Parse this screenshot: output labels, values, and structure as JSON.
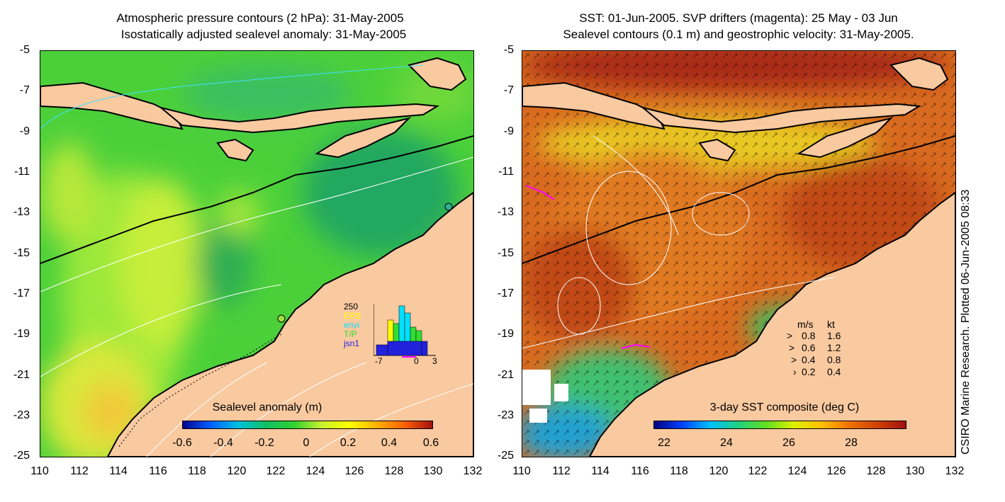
{
  "left_panel": {
    "title_line1": "Atmospheric pressure contours (2 hPa): 31-May-2005",
    "title_line2": "Isostatically adjusted sealevel anomaly: 31-May-2005",
    "colorbar": {
      "title": "Sealevel anomaly (m)",
      "ticks": [
        "-0.6",
        "-0.4",
        "-0.2",
        "0",
        "0.2",
        "0.4",
        "0.6"
      ]
    },
    "inset": {
      "ymax_label": "250",
      "series_labels": [
        {
          "text": "ERS",
          "color": "#ffff00"
        },
        {
          "text": "envi",
          "color": "#00e0ff"
        },
        {
          "text": "T/P",
          "color": "#33dd33"
        },
        {
          "text": "jsn1",
          "color": "#2222dd"
        }
      ],
      "x_ticks": [
        "-7",
        "0",
        "3"
      ]
    }
  },
  "right_panel": {
    "title_line1": "SST: 01-Jun-2005. SVP drifters (magenta): 25 May - 03 Jun",
    "title_line2": "Sealevel contours (0.1 m) and geostrophic velocity: 31-May-2005.",
    "colorbar": {
      "title": "3-day SST composite (deg C)",
      "ticks": [
        "22",
        "24",
        "26",
        "28"
      ]
    },
    "velocity_legend": {
      "header_ms": "m/s",
      "header_kt": "kt",
      "rows": [
        {
          "ms": "0.8",
          "kt": "1.6"
        },
        {
          "ms": "0.6",
          "kt": "1.2"
        },
        {
          "ms": "0.4",
          "kt": "0.8"
        },
        {
          "ms": "0.2",
          "kt": "0.4"
        }
      ]
    }
  },
  "axes": {
    "lat_ticks": [
      "-5",
      "-7",
      "-9",
      "-11",
      "-13",
      "-15",
      "-17",
      "-19",
      "-21",
      "-23",
      "-25"
    ],
    "lon_ticks": [
      "110",
      "112",
      "114",
      "116",
      "118",
      "120",
      "122",
      "124",
      "126",
      "128",
      "130",
      "132"
    ]
  },
  "credit": "CSIRO Marine Research. Plotted 06-Jun-2005 08:33",
  "colors": {
    "land": "#f9c9a0",
    "sla_colormap": [
      "#000090",
      "#0060ff",
      "#00c0e0",
      "#10c060",
      "#30d030",
      "#c8f030",
      "#ffff00",
      "#ffb000",
      "#ff6000",
      "#a01010"
    ],
    "sst_colormap": [
      "#000080",
      "#0040ff",
      "#00c0ff",
      "#20d080",
      "#60e020",
      "#e0f000",
      "#ffc000",
      "#f07000",
      "#d04000",
      "#a01010"
    ],
    "drifter": "#ff00ff"
  }
}
